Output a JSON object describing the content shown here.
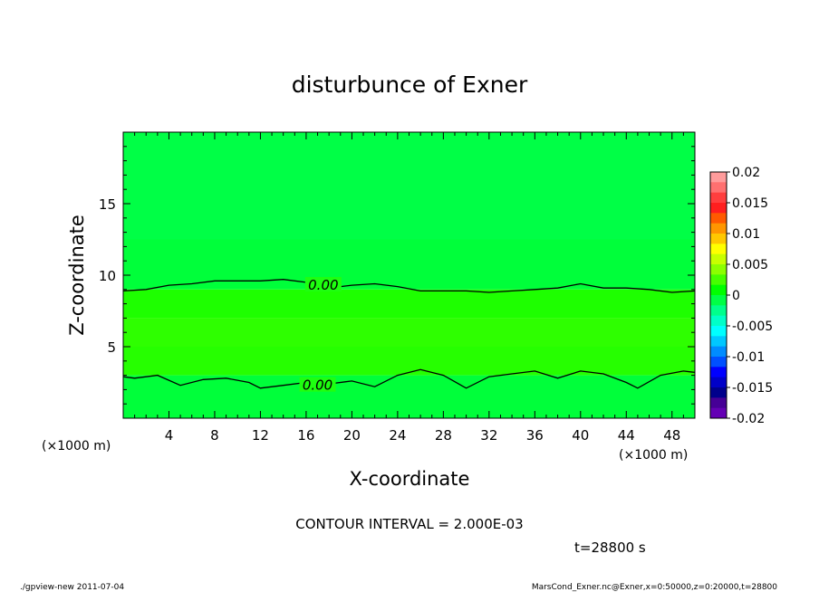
{
  "chart_data": {
    "type": "contour",
    "title": "disturbunce of Exner",
    "xlabel": "X-coordinate",
    "ylabel": "Z-coordinate",
    "x_unit_left": "(×1000 m)",
    "x_unit_right": "(×1000 m)",
    "xlim": [
      0,
      50
    ],
    "ylim": [
      0,
      20
    ],
    "x_ticks": [
      4,
      8,
      12,
      16,
      20,
      24,
      28,
      32,
      36,
      40,
      44,
      48
    ],
    "y_ticks": [
      5,
      10,
      15
    ],
    "contour_interval_text": "CONTOUR INTERVAL = 2.000E-03",
    "time_text": "t=28800 s",
    "colorbar": {
      "ticks": [
        "0.02",
        "0.015",
        "0.01",
        "0.005",
        "0",
        "-0.005",
        "-0.01",
        "-0.015",
        "-0.02"
      ],
      "colors": [
        "#ff9c9c",
        "#ff7070",
        "#ff3e3e",
        "#ff1e1e",
        "#ff5a00",
        "#ff9600",
        "#ffc800",
        "#ffff00",
        "#c8ff00",
        "#8cff00",
        "#46ff00",
        "#00ff00",
        "#00ff46",
        "#00ff8c",
        "#00ffc8",
        "#00ffff",
        "#00c8ff",
        "#008cff",
        "#0050ff",
        "#0000ff",
        "#0000c8",
        "#00008c",
        "#460096",
        "#6400b4"
      ]
    },
    "bands": [
      {
        "z0": 12.5,
        "z1": 20.0,
        "color": "#00ff46"
      },
      {
        "z0": 9.0,
        "z1": 12.5,
        "color": "#00ff3a"
      },
      {
        "z0": 7.0,
        "z1": 9.0,
        "color": "#1eff00"
      },
      {
        "z0": 5.0,
        "z1": 7.0,
        "color": "#2eff00"
      },
      {
        "z0": 3.0,
        "z1": 5.0,
        "color": "#26ff00"
      },
      {
        "z0": 0.0,
        "z1": 3.0,
        "color": "#00ff3a"
      }
    ],
    "contours": [
      {
        "level": "0.00",
        "label_at": [
          17.5,
          9.3
        ],
        "points": [
          [
            0,
            8.9
          ],
          [
            2,
            9.0
          ],
          [
            4,
            9.3
          ],
          [
            6,
            9.4
          ],
          [
            8,
            9.6
          ],
          [
            10,
            9.6
          ],
          [
            12,
            9.6
          ],
          [
            14,
            9.7
          ],
          [
            16,
            9.5
          ],
          [
            18,
            9.1
          ],
          [
            20,
            9.3
          ],
          [
            22,
            9.4
          ],
          [
            24,
            9.2
          ],
          [
            26,
            8.9
          ],
          [
            28,
            8.9
          ],
          [
            30,
            8.9
          ],
          [
            32,
            8.8
          ],
          [
            34,
            8.9
          ],
          [
            36,
            9.0
          ],
          [
            38,
            9.1
          ],
          [
            40,
            9.4
          ],
          [
            42,
            9.1
          ],
          [
            44,
            9.1
          ],
          [
            46,
            9.0
          ],
          [
            48,
            8.8
          ],
          [
            50,
            8.9
          ]
        ]
      },
      {
        "level": "0.00",
        "label_at": [
          17.0,
          2.3
        ],
        "points": [
          [
            0,
            2.9
          ],
          [
            1,
            2.8
          ],
          [
            3,
            3.0
          ],
          [
            5,
            2.3
          ],
          [
            7,
            2.7
          ],
          [
            9,
            2.8
          ],
          [
            11,
            2.5
          ],
          [
            12,
            2.1
          ],
          [
            14,
            2.3
          ],
          [
            16,
            2.5
          ],
          [
            18,
            2.4
          ],
          [
            20,
            2.6
          ],
          [
            22,
            2.2
          ],
          [
            24,
            3.0
          ],
          [
            26,
            3.4
          ],
          [
            28,
            3.0
          ],
          [
            30,
            2.1
          ],
          [
            32,
            2.9
          ],
          [
            34,
            3.1
          ],
          [
            36,
            3.3
          ],
          [
            38,
            2.8
          ],
          [
            40,
            3.3
          ],
          [
            42,
            3.1
          ],
          [
            44,
            2.5
          ],
          [
            45,
            2.1
          ],
          [
            47,
            3.0
          ],
          [
            49,
            3.3
          ],
          [
            50,
            3.2
          ]
        ]
      }
    ]
  },
  "footer": {
    "left": "./gpview-new  2011-07-04",
    "right": "MarsCond_Exner.nc@Exner,x=0:50000,z=0:20000,t=28800"
  }
}
